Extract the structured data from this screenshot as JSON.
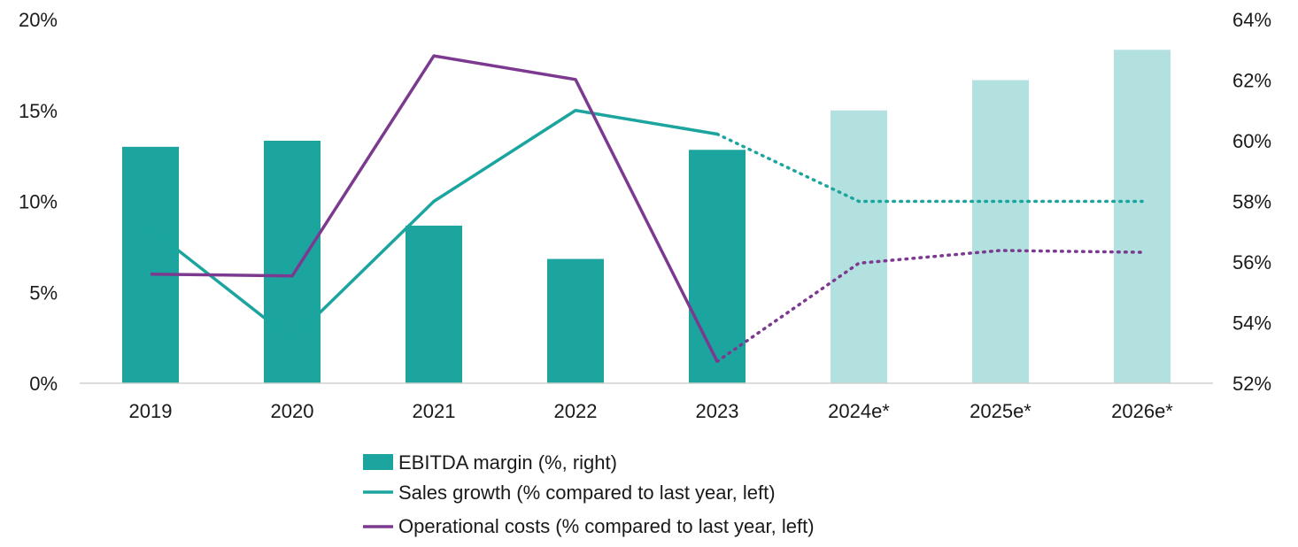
{
  "chart_data": {
    "type": "bar+line",
    "categories": [
      "2019",
      "2020",
      "2021",
      "2022",
      "2023",
      "2024e*",
      "2025e*",
      "2026e*"
    ],
    "left_axis": {
      "min": 0,
      "max": 20,
      "ticks": [
        "0%",
        "5%",
        "10%",
        "15%",
        "20%"
      ]
    },
    "right_axis": {
      "min": 52,
      "max": 64,
      "ticks": [
        "52%",
        "54%",
        "56%",
        "58%",
        "60%",
        "62%",
        "64%"
      ]
    },
    "grid": false,
    "legend_position": "bottom",
    "series": [
      {
        "name": "EBITDA margin (%, right)",
        "kind": "bar",
        "axis": "right",
        "values": [
          59.8,
          60.0,
          57.2,
          56.1,
          59.7,
          61.0,
          62.0,
          63.0
        ],
        "actual_color": "#1ba59e",
        "estimate_color": "#b3e1df",
        "estimate_from_index": 5
      },
      {
        "name": "Sales growth (% compared to last year, left)",
        "kind": "line",
        "axis": "left",
        "values": [
          8.5,
          2.4,
          10.0,
          15.0,
          13.7,
          10.0,
          10.0,
          10.0
        ],
        "color": "#1ba59e",
        "dotted_from_index": 4
      },
      {
        "name": "Operational costs (% compared to last year, left)",
        "kind": "line",
        "axis": "left",
        "values": [
          6.0,
          5.9,
          18.0,
          16.7,
          1.2,
          6.6,
          7.3,
          7.2
        ],
        "color": "#7b3a8f",
        "dotted_from_index": 4
      }
    ]
  }
}
